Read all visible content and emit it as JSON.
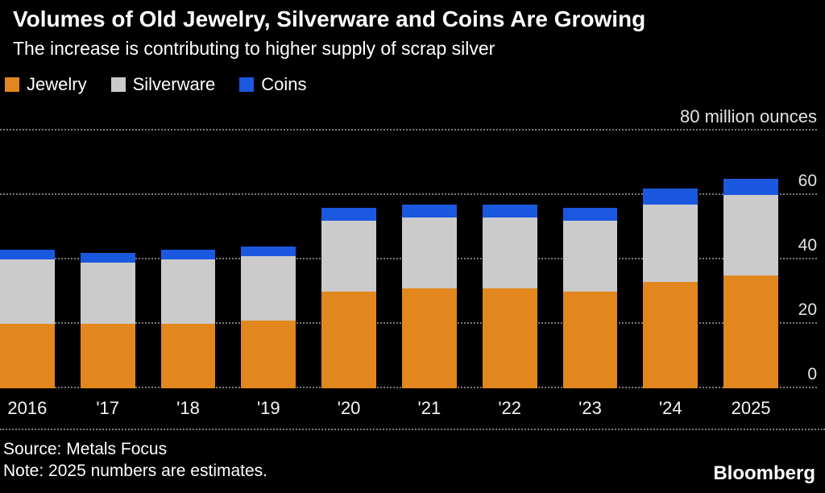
{
  "header": {
    "title": "Volumes of Old Jewelry, Silverware and Coins Are Growing",
    "subtitle": "The increase is contributing to higher supply of scrap silver"
  },
  "legend": [
    {
      "label": "Jewelry",
      "color": "#e2871d"
    },
    {
      "label": "Silverware",
      "color": "#cbcbcb"
    },
    {
      "label": "Coins",
      "color": "#1a58df"
    }
  ],
  "chart_data": {
    "type": "bar",
    "stacked": true,
    "unit_label": "80 million ounces",
    "categories": [
      "2016",
      "'17",
      "'18",
      "'19",
      "'20",
      "'21",
      "'22",
      "'23",
      "'24",
      "2025"
    ],
    "series": [
      {
        "name": "Jewelry",
        "color": "#e2871d",
        "values": [
          20,
          20,
          20,
          21,
          30,
          31,
          31,
          30,
          33,
          35
        ]
      },
      {
        "name": "Silverware",
        "color": "#cbcbcb",
        "values": [
          20,
          19,
          20,
          20,
          22,
          22,
          22,
          22,
          24,
          25
        ]
      },
      {
        "name": "Coins",
        "color": "#1a58df",
        "values": [
          3,
          3,
          3,
          3,
          4,
          4,
          4,
          4,
          5,
          5
        ]
      }
    ],
    "ylim": [
      0,
      80
    ],
    "yticks": [
      0,
      20,
      40,
      60
    ],
    "grid": "dotted horizontal",
    "legend_position": "top-left"
  },
  "footer": {
    "source": "Source: Metals Focus",
    "note": "Note: 2025 numbers are estimates.",
    "brand": "Bloomberg"
  }
}
